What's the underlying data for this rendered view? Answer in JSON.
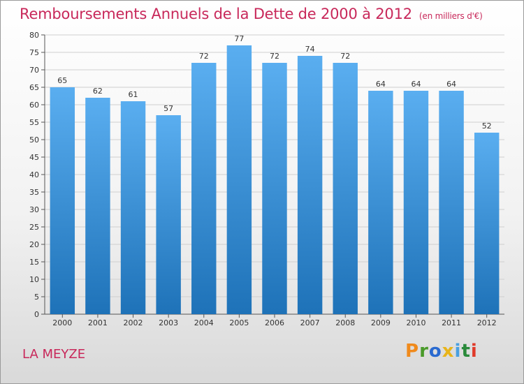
{
  "header": {
    "title": "Remboursements Annuels de la Dette de 2000 à 2012",
    "unit": "(en milliers d'€)"
  },
  "footer": {
    "commune": "LA MEYZE",
    "logo_text": "Proxiti"
  },
  "colors": {
    "title": "#c8285a",
    "bar_top": "#5aaef0",
    "bar_bottom": "#1e72b8",
    "grid": "#cfcfcf",
    "logo": [
      "#f08a1c",
      "#4a9a2a",
      "#2a6ad0",
      "#e8b41a",
      "#4aa0e0",
      "#2a8a3a",
      "#e03a2a"
    ]
  },
  "chart_data": {
    "type": "bar",
    "categories": [
      "2000",
      "2001",
      "2002",
      "2003",
      "2004",
      "2005",
      "2006",
      "2007",
      "2008",
      "2009",
      "2010",
      "2011",
      "2012"
    ],
    "values": [
      65,
      62,
      61,
      57,
      72,
      77,
      72,
      74,
      72,
      64,
      64,
      64,
      52
    ],
    "title": "Remboursements Annuels de la Dette de 2000 à 2012",
    "xlabel": "",
    "ylabel": "",
    "ylim": [
      0,
      80
    ],
    "yticks": [
      0,
      5,
      10,
      15,
      20,
      25,
      30,
      35,
      40,
      45,
      50,
      55,
      60,
      65,
      70,
      75,
      80
    ],
    "grid": true,
    "data_labels": true
  }
}
